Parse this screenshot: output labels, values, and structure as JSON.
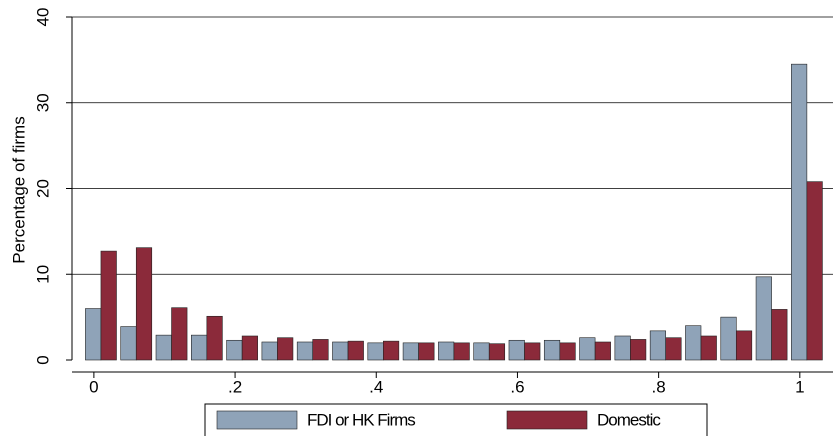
{
  "chart_data": {
    "type": "bar",
    "ylabel": "Percentage of firms",
    "x": [
      0.01,
      0.06,
      0.11,
      0.16,
      0.21,
      0.26,
      0.31,
      0.36,
      0.41,
      0.46,
      0.51,
      0.56,
      0.61,
      0.66,
      0.71,
      0.76,
      0.81,
      0.86,
      0.91,
      0.96,
      1.01
    ],
    "series": [
      {
        "name": "FDI or HK Firms",
        "color": "#8fa3b8",
        "values": [
          6.0,
          3.9,
          2.9,
          2.9,
          2.3,
          2.1,
          2.1,
          2.1,
          2.0,
          2.0,
          2.1,
          2.0,
          2.3,
          2.3,
          2.6,
          2.8,
          3.4,
          4.0,
          5.0,
          9.7,
          34.5
        ]
      },
      {
        "name": "Domestic",
        "color": "#8b2a3a",
        "values": [
          12.7,
          13.1,
          6.1,
          5.1,
          2.8,
          2.6,
          2.4,
          2.2,
          2.2,
          2.0,
          2.0,
          1.9,
          2.0,
          2.0,
          2.1,
          2.4,
          2.6,
          2.8,
          3.4,
          5.9,
          20.8
        ]
      }
    ],
    "xlim": [
      -0.031,
      1.047
    ],
    "xticks": [
      0,
      {
        "value": 0.2,
        "label": ".2"
      },
      {
        "value": 0.4,
        "label": ".4"
      },
      {
        "value": 0.6,
        "label": ".6"
      },
      {
        "value": 0.8,
        "label": ".8"
      },
      1
    ],
    "ylim": [
      0,
      40
    ],
    "yticks": [
      0,
      10,
      20,
      30,
      40
    ],
    "grid": true,
    "legend": "bottom"
  }
}
